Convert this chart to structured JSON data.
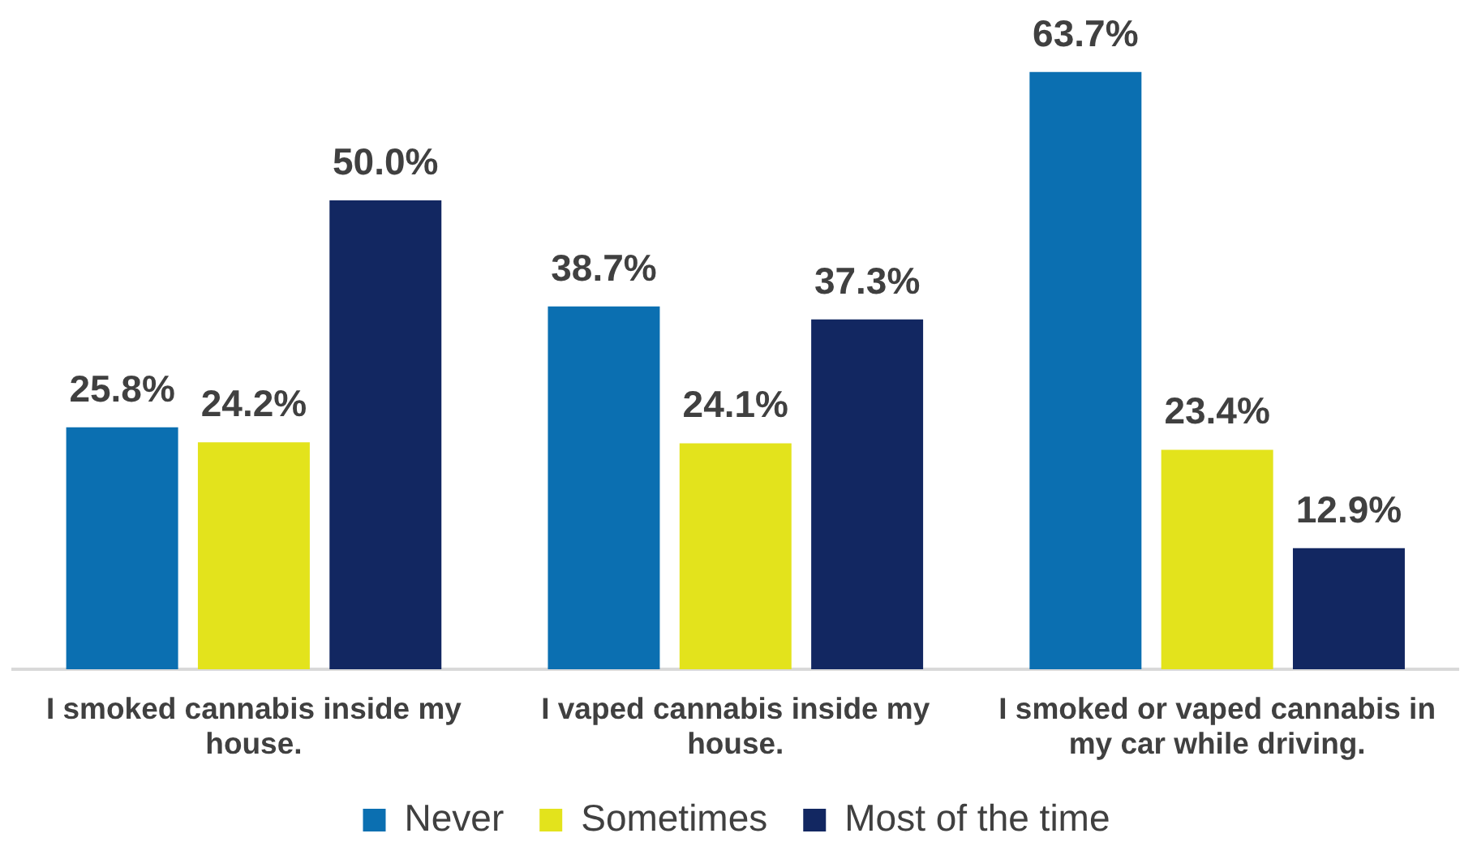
{
  "chart_data": {
    "type": "bar",
    "categories": [
      "I smoked cannabis inside my house.",
      "I vaped cannabis inside my house.",
      "I smoked or vaped cannabis in my car while driving."
    ],
    "series": [
      {
        "name": "Never",
        "color": "#0b6fb1",
        "values": [
          25.8,
          38.7,
          63.7
        ],
        "value_labels": [
          "25.8%",
          "38.7%",
          "63.7%"
        ]
      },
      {
        "name": "Sometimes",
        "color": "#e3e31c",
        "values": [
          24.2,
          24.1,
          23.4
        ],
        "value_labels": [
          "24.2%",
          "24.1%",
          "23.4%"
        ]
      },
      {
        "name": "Most of the time",
        "color": "#122761",
        "values": [
          50.0,
          37.3,
          12.9
        ],
        "value_labels": [
          "50.0%",
          "37.3%",
          "12.9%"
        ]
      }
    ],
    "legend": "bottom",
    "tick_labels": "x"
  }
}
